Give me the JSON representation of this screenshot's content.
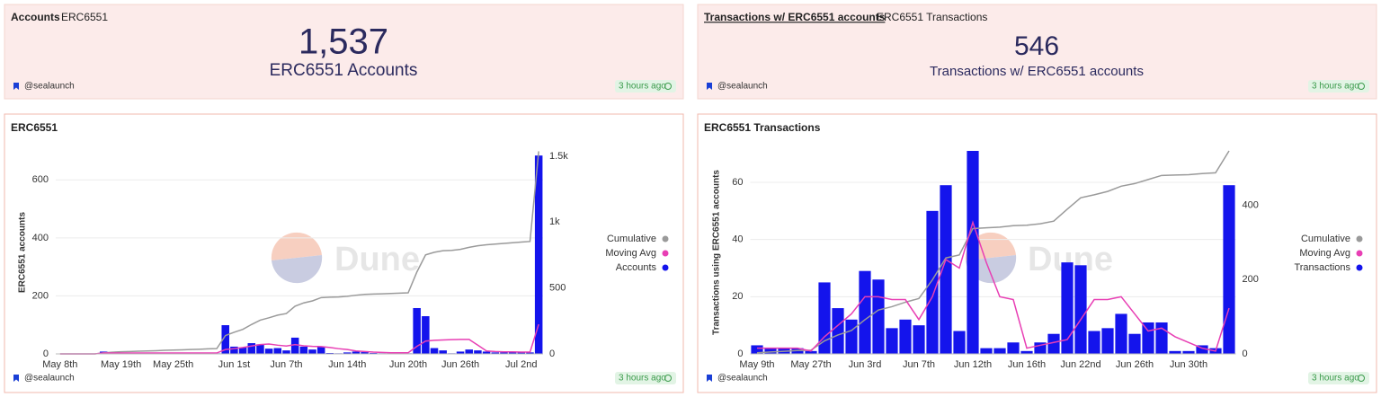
{
  "watermark": "Dune",
  "counters": [
    {
      "tabs": [
        "Accounts",
        "ERC6551"
      ],
      "value": "1,537",
      "label": "ERC6551 Accounts",
      "author": "@sealaunch",
      "updated": "3 hours ago"
    },
    {
      "tabs": [
        "Transactions w/ ERC6551 accounts",
        "ERC6551 Transactions"
      ],
      "value": "546",
      "label": "Transactions w/ ERC6551 accounts",
      "author": "@sealaunch",
      "updated": "3 hours ago"
    }
  ],
  "chart_data": [
    {
      "type": "combo",
      "title": "ERC6551",
      "ylabel": "ERC6551 accounts",
      "author": "@sealaunch",
      "updated": "3 hours ago",
      "legend": "right",
      "grid": true,
      "categories": [
        "May 8th",
        null,
        null,
        null,
        null,
        null,
        null,
        "May 19th",
        null,
        null,
        null,
        null,
        null,
        "May 25th",
        null,
        null,
        null,
        null,
        null,
        null,
        "Jun 1st",
        null,
        null,
        null,
        null,
        null,
        "Jun 7th",
        null,
        null,
        null,
        null,
        null,
        null,
        "Jun 14th",
        null,
        null,
        null,
        null,
        null,
        null,
        "Jun 20th",
        null,
        null,
        null,
        null,
        null,
        "Jun 26th",
        null,
        null,
        null,
        null,
        null,
        null,
        "Jul 2nd",
        null,
        null
      ],
      "ylim": [
        0,
        700
      ],
      "yticks": [
        0,
        200,
        400,
        600
      ],
      "y2lim": [
        0,
        1540
      ],
      "y2ticks": [
        0,
        500,
        {
          "value": 1000,
          "label": "1k"
        },
        {
          "value": 1500,
          "label": "1.5k"
        }
      ],
      "series": [
        {
          "name": "Cumulative",
          "type": "line",
          "axis": "y2",
          "color": "#9a9a9a",
          "values": [
            0,
            0,
            0,
            0,
            0,
            8,
            13,
            16,
            18,
            20,
            22,
            24,
            27,
            29,
            31,
            33,
            35,
            38,
            40,
            139,
            164,
            186,
            223,
            256,
            274,
            294,
            306,
            362,
            387,
            402,
            427,
            430,
            432,
            437,
            445,
            451,
            454,
            456,
            458,
            461,
            463,
            621,
            751,
            771,
            783,
            785,
            793,
            808,
            820,
            828,
            833,
            838,
            843,
            848,
            853,
            1537
          ]
        },
        {
          "name": "Moving Avg",
          "type": "line",
          "color": "#e83fb4",
          "values": [
            0,
            0,
            0,
            0,
            0,
            3,
            3,
            3,
            3,
            3,
            3,
            3,
            3,
            3,
            3,
            3,
            3,
            3,
            3,
            15,
            18,
            22,
            27,
            32,
            34,
            30,
            27,
            32,
            28,
            26,
            25,
            22,
            18,
            15,
            10,
            8,
            6,
            5,
            4,
            4,
            4,
            26,
            44,
            47,
            48,
            49,
            50,
            50,
            30,
            10,
            8,
            7,
            7,
            6,
            6,
            102
          ]
        },
        {
          "name": "Accounts",
          "type": "bar",
          "color": "#1414ec",
          "values": [
            0,
            0,
            0,
            0,
            0,
            8,
            5,
            3,
            2,
            2,
            2,
            2,
            3,
            2,
            2,
            2,
            2,
            3,
            2,
            99,
            25,
            22,
            37,
            33,
            18,
            20,
            12,
            56,
            25,
            15,
            25,
            3,
            2,
            5,
            8,
            6,
            3,
            2,
            2,
            3,
            2,
            158,
            130,
            20,
            12,
            2,
            8,
            15,
            12,
            8,
            5,
            5,
            5,
            5,
            5,
            684
          ]
        }
      ]
    },
    {
      "type": "combo",
      "title": "ERC6551 Transactions",
      "ylabel": "Transactions using ERC6551 accounts",
      "author": "@sealaunch",
      "updated": "3 hours ago",
      "legend": "right",
      "grid": true,
      "categories": [
        "May 9th",
        null,
        null,
        null,
        "May 27th",
        null,
        null,
        null,
        "Jun 3rd",
        null,
        null,
        null,
        "Jun 7th",
        null,
        null,
        null,
        "Jun 12th",
        null,
        null,
        null,
        "Jun 16th",
        null,
        null,
        null,
        "Jun 22nd",
        null,
        null,
        null,
        "Jun 26th",
        null,
        null,
        null,
        "Jun 30th",
        null,
        null,
        null
      ],
      "ylim": [
        0,
        71
      ],
      "yticks": [
        0,
        20,
        40,
        60
      ],
      "y2lim": [
        0,
        546
      ],
      "y2ticks": [
        0,
        200,
        400
      ],
      "series": [
        {
          "name": "Cumulative",
          "type": "line",
          "axis": "y2",
          "color": "#9a9a9a",
          "values": [
            3,
            5,
            7,
            9,
            10,
            35,
            51,
            63,
            92,
            118,
            127,
            139,
            149,
            199,
            258,
            266,
            337,
            339,
            341,
            345,
            346,
            350,
            357,
            389,
            420,
            428,
            437,
            451,
            458,
            469,
            480,
            481,
            482,
            485,
            487,
            546
          ]
        },
        {
          "name": "Moving Avg",
          "type": "line",
          "color": "#e83fb4",
          "values": [
            2,
            2,
            2,
            2,
            1,
            6,
            10,
            14,
            20,
            20,
            19,
            19,
            12,
            20,
            33,
            30,
            46,
            32,
            20,
            19,
            2,
            3,
            4,
            5,
            12,
            19,
            19,
            20,
            14,
            8,
            9,
            6,
            4,
            2,
            1,
            16
          ]
        },
        {
          "name": "Transactions",
          "type": "bar",
          "color": "#1414ec",
          "values": [
            3,
            2,
            2,
            2,
            1,
            25,
            16,
            12,
            29,
            26,
            9,
            12,
            10,
            50,
            59,
            8,
            71,
            2,
            2,
            4,
            1,
            4,
            7,
            32,
            31,
            8,
            9,
            14,
            7,
            11,
            11,
            1,
            1,
            3,
            2,
            59
          ]
        }
      ]
    }
  ]
}
